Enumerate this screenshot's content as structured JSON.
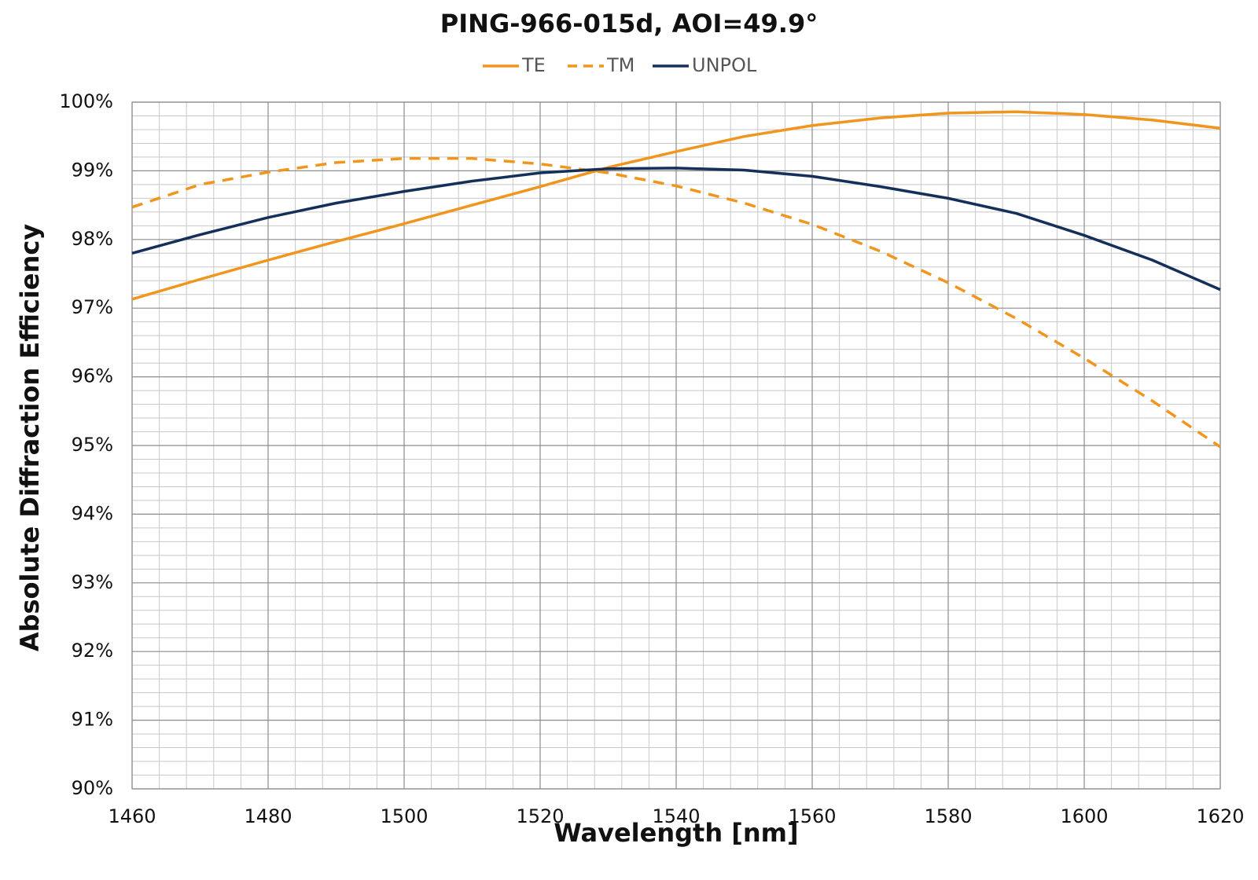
{
  "chart_data": {
    "type": "line",
    "title": "PING-966-015d, AOI=49.9°",
    "x_label": "Wavelength [nm]",
    "y_label": "Absolute Diffraction Efficiency",
    "x": [
      1460,
      1470,
      1480,
      1490,
      1500,
      1510,
      1520,
      1530,
      1540,
      1550,
      1560,
      1570,
      1580,
      1590,
      1600,
      1610,
      1620
    ],
    "series": [
      {
        "name": "TE",
        "color": "#f0961e",
        "line_style": "solid",
        "values": [
          97.13,
          97.42,
          97.7,
          97.97,
          98.23,
          98.5,
          98.77,
          99.05,
          99.28,
          99.5,
          99.66,
          99.77,
          99.84,
          99.86,
          99.82,
          99.74,
          99.62
        ]
      },
      {
        "name": "TM",
        "color": "#f0961e",
        "line_style": "dashed",
        "values": [
          98.47,
          98.8,
          98.98,
          99.12,
          99.18,
          99.18,
          99.1,
          98.97,
          98.78,
          98.53,
          98.22,
          97.83,
          97.37,
          96.85,
          96.27,
          95.65,
          94.98
        ]
      },
      {
        "name": "UNPOL",
        "color": "#14305a",
        "line_style": "solid",
        "values": [
          97.8,
          98.07,
          98.32,
          98.53,
          98.7,
          98.85,
          98.97,
          99.03,
          99.04,
          99.01,
          98.92,
          98.77,
          98.6,
          98.38,
          98.06,
          97.7,
          97.27
        ]
      }
    ],
    "xlim": [
      1460,
      1620
    ],
    "xticks": [
      1460,
      1480,
      1500,
      1520,
      1540,
      1560,
      1580,
      1600,
      1620
    ],
    "ylim": [
      90,
      100
    ],
    "yticks": [
      {
        "value": 90,
        "label": "90%"
      },
      {
        "value": 91,
        "label": "91%"
      },
      {
        "value": 92,
        "label": "92%"
      },
      {
        "value": 93,
        "label": "93%"
      },
      {
        "value": 94,
        "label": "94%"
      },
      {
        "value": 95,
        "label": "95%"
      },
      {
        "value": 96,
        "label": "96%"
      },
      {
        "value": 97,
        "label": "97%"
      },
      {
        "value": 98,
        "label": "98%"
      },
      {
        "value": 99,
        "label": "99%"
      },
      {
        "value": 100,
        "label": "100%"
      }
    ],
    "grid": true,
    "minor_grid_divisions": 5,
    "legend": "top"
  }
}
